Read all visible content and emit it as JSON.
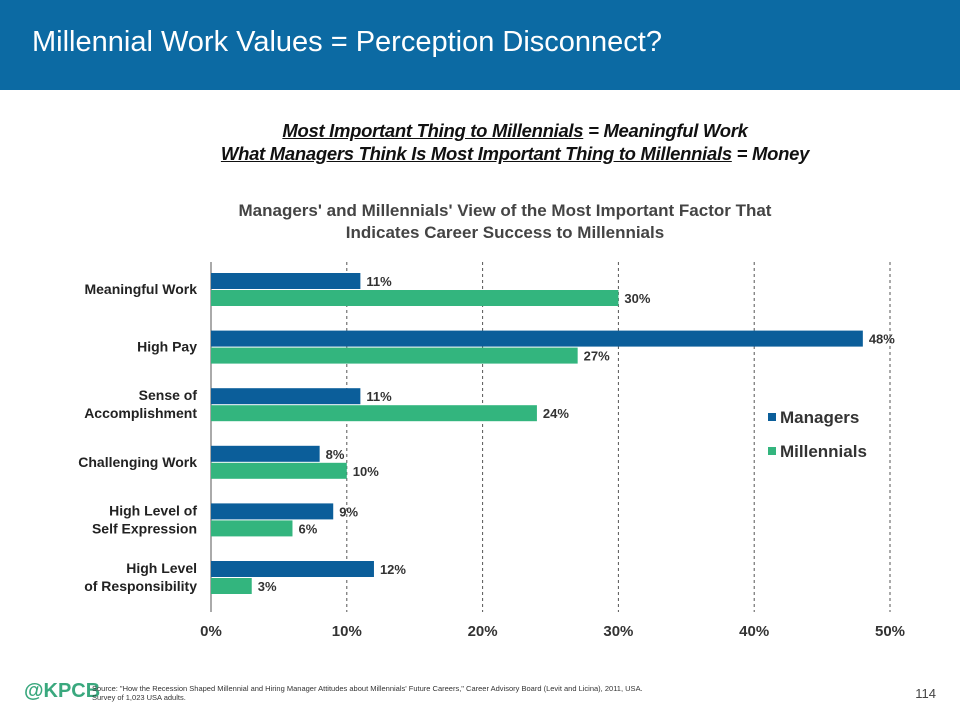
{
  "header": {
    "title": "Millennial Work Values = Perception Disconnect?"
  },
  "subtitle": {
    "line1_underlined": "Most Important Thing to Millennials",
    "line1_rest": " = Meaningful Work",
    "line2_underlined": "What Managers Think Is Most Important Thing to Millennials",
    "line2_rest": " = Money"
  },
  "chart_data": {
    "type": "bar",
    "orientation": "horizontal",
    "title": "Managers' and Millennials' View of the Most Important Factor That Indicates Career Success to Millennials",
    "title_line1": "Managers' and Millennials' View of the Most Important Factor That",
    "title_line2": "Indicates Career Success to Millennials",
    "categories": [
      [
        "Meaningful Work"
      ],
      [
        "High Pay"
      ],
      [
        "Sense of",
        "Accomplishment"
      ],
      [
        "Challenging Work"
      ],
      [
        "High Level of",
        "Self Expression"
      ],
      [
        "High Level",
        "of Responsibility"
      ]
    ],
    "series": [
      {
        "name": "Managers",
        "color": "#0b5e9a",
        "values": [
          11,
          48,
          11,
          8,
          9,
          12
        ]
      },
      {
        "name": "Millennials",
        "color": "#33b57e",
        "values": [
          30,
          27,
          24,
          10,
          6,
          3
        ]
      }
    ],
    "xlim": [
      0,
      50
    ],
    "xticks": [
      0,
      10,
      20,
      30,
      40,
      50
    ],
    "tick_suffix": "%",
    "grid": "vertical dashed",
    "legend": "right"
  },
  "footer": {
    "logo": "@KPCB",
    "source_line1": "Source: \"How the Recession Shaped Millennial and Hiring Manager Attitudes about Millennials' Future Careers,\" Career Advisory Board (Levit and Licina), 2011, USA.",
    "source_line2": "Survey of 1,023 USA adults.",
    "page_number": "114"
  }
}
